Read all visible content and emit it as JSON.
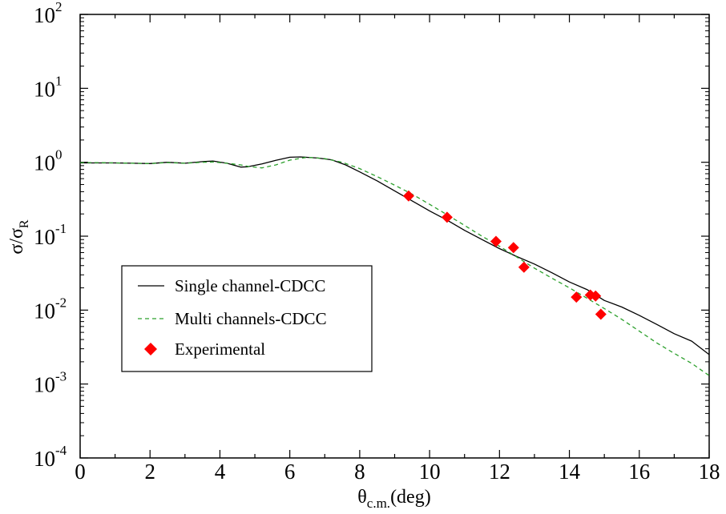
{
  "chart_data": {
    "type": "line",
    "title": "",
    "xlabel": {
      "base": "θ",
      "sub": "c.m.",
      "suffix": "(deg)"
    },
    "ylabel": {
      "base": "σ/σ",
      "sub": "R"
    },
    "xlim": [
      0,
      18
    ],
    "ylim": [
      0.0001,
      100
    ],
    "yscale": "log",
    "grid": false,
    "legend_position": "lower-left",
    "x_ticks": [
      "0",
      "2",
      "4",
      "6",
      "8",
      "10",
      "12",
      "14",
      "16",
      "18"
    ],
    "y_ticks": [
      {
        "base": "10",
        "exp": "-4"
      },
      {
        "base": "10",
        "exp": "-3"
      },
      {
        "base": "10",
        "exp": "-2"
      },
      {
        "base": "10",
        "exp": "-1"
      },
      {
        "base": "10",
        "exp": "0"
      },
      {
        "base": "10",
        "exp": "1"
      },
      {
        "base": "10",
        "exp": "2"
      }
    ],
    "series": [
      {
        "name": "Single channel-CDCC",
        "style": "solid",
        "color": "#000000",
        "x": [
          0,
          0.5,
          1,
          1.5,
          2,
          2.5,
          3,
          3.5,
          3.8,
          4.2,
          4.6,
          4.8,
          5.2,
          5.6,
          6,
          6.3,
          6.8,
          7.2,
          7.6,
          8,
          8.5,
          9,
          9.5,
          10,
          10.5,
          11,
          11.5,
          12,
          12.5,
          13,
          13.5,
          14,
          14.5,
          15,
          15.5,
          16,
          16.5,
          17,
          17.5,
          18
        ],
        "y": [
          0.98,
          0.98,
          0.98,
          0.97,
          0.96,
          1.0,
          0.97,
          1.02,
          1.04,
          0.97,
          0.86,
          0.87,
          0.95,
          1.06,
          1.17,
          1.18,
          1.14,
          1.08,
          0.92,
          0.74,
          0.56,
          0.41,
          0.3,
          0.22,
          0.165,
          0.12,
          0.09,
          0.068,
          0.053,
          0.042,
          0.032,
          0.024,
          0.019,
          0.0135,
          0.011,
          0.0085,
          0.0064,
          0.0048,
          0.0038,
          0.0025
        ]
      },
      {
        "name": "Multi channels-CDCC",
        "style": "dashed",
        "color": "#2ca02c",
        "x": [
          0,
          0.5,
          1,
          1.5,
          2,
          2.5,
          3,
          3.5,
          3.8,
          4.2,
          4.6,
          4.8,
          5.2,
          5.6,
          6,
          6.5,
          7,
          7.5,
          8,
          8.5,
          9,
          9.5,
          10,
          10.5,
          11,
          11.5,
          12,
          12.5,
          13,
          13.5,
          14,
          14.5,
          15,
          15.5,
          16,
          16.5,
          17,
          17.5,
          18
        ],
        "y": [
          0.99,
          0.99,
          0.98,
          0.97,
          0.96,
          0.99,
          0.97,
          1.0,
          1.01,
          0.97,
          0.92,
          0.88,
          0.84,
          0.92,
          1.07,
          1.17,
          1.12,
          1.0,
          0.82,
          0.64,
          0.49,
          0.37,
          0.27,
          0.195,
          0.14,
          0.1,
          0.073,
          0.052,
          0.037,
          0.027,
          0.02,
          0.0145,
          0.0105,
          0.0075,
          0.0052,
          0.0036,
          0.0026,
          0.0019,
          0.0013
        ]
      }
    ],
    "experimental": {
      "name": "Experimental",
      "color": "#ff0000",
      "marker": "diamond",
      "x": [
        9.4,
        10.5,
        11.9,
        12.4,
        12.7,
        14.2,
        14.6,
        14.75,
        14.9
      ],
      "y": [
        0.35,
        0.18,
        0.085,
        0.07,
        0.038,
        0.015,
        0.016,
        0.0155,
        0.0088
      ]
    }
  }
}
